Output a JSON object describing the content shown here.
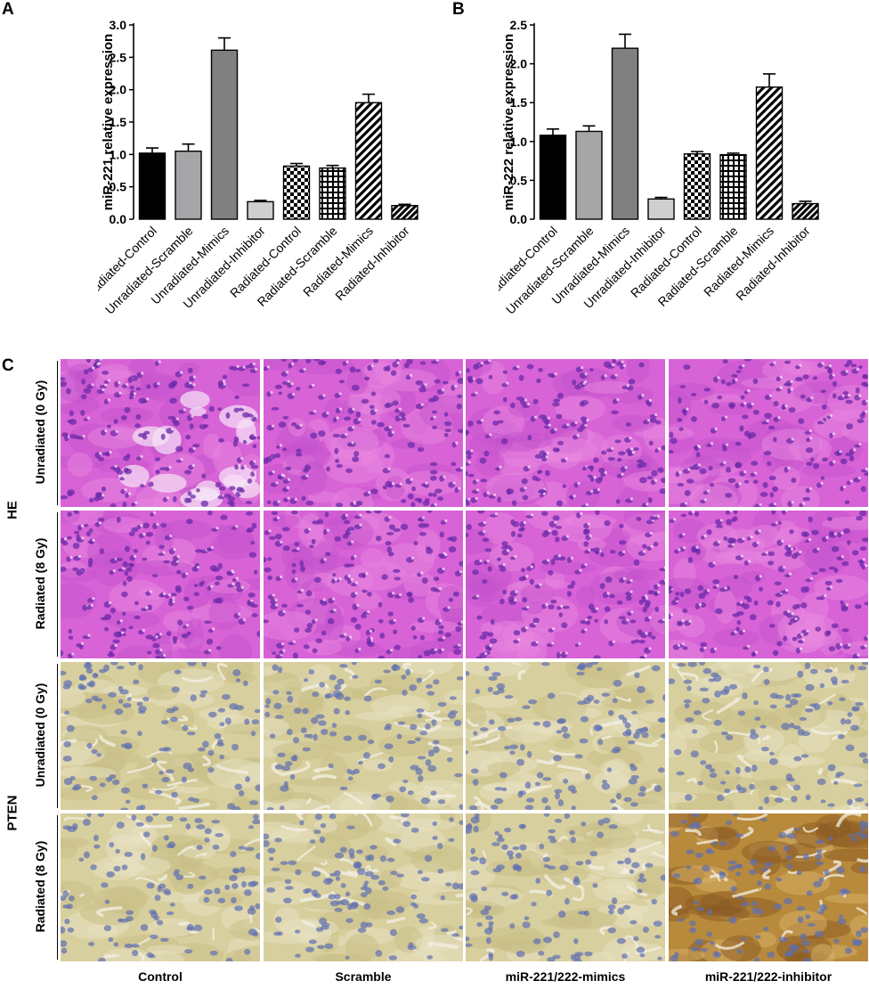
{
  "panels": {
    "a": "A",
    "b": "B",
    "c": "C"
  },
  "chart_data": [
    {
      "type": "bar",
      "ylabel": "miR-221 relative expression",
      "ylim": [
        0,
        3.0
      ],
      "yticks": [
        "0.0",
        "0.5",
        "1.0",
        "1.5",
        "2.0",
        "2.5",
        "3.0"
      ],
      "categories": [
        "Unradiated-Control",
        "Unradiated-Scramble",
        "Unradiated-Mimics",
        "Unradiated-Inhibitor",
        "Radiated-Control",
        "Radiated-Scramble",
        "Radiated-Mimics",
        "Radiated-Inhibitor"
      ],
      "values": [
        1.02,
        1.05,
        2.61,
        0.27,
        0.82,
        0.79,
        1.8,
        0.21
      ],
      "errors": [
        0.08,
        0.11,
        0.19,
        0.02,
        0.04,
        0.04,
        0.13,
        0.02
      ],
      "fills": [
        "solid-black",
        "solid-lightgray",
        "solid-gray",
        "solid-palegray",
        "checker",
        "grid",
        "diagonal",
        "diagonal-dense"
      ]
    },
    {
      "type": "bar",
      "ylabel": "miR-222 relative expression",
      "ylim": [
        0,
        2.5
      ],
      "yticks": [
        "0.0",
        "0.5",
        "1.0",
        "1.5",
        "2.0",
        "2.5"
      ],
      "categories": [
        "Unradiated-Control",
        "Unradiated-Scramble",
        "Unradiated-Mimics",
        "Unradiated-Inhibitor",
        "Radiated-Control",
        "Radiated-Scramble",
        "Radiated-Mimics",
        "Radiated-Inhibitor"
      ],
      "values": [
        1.08,
        1.13,
        2.2,
        0.26,
        0.84,
        0.83,
        1.7,
        0.2
      ],
      "errors": [
        0.08,
        0.07,
        0.18,
        0.02,
        0.03,
        0.02,
        0.17,
        0.03
      ],
      "fills": [
        "solid-black",
        "solid-lightgray",
        "solid-gray",
        "solid-palegray",
        "checker",
        "grid",
        "diagonal",
        "diagonal-dense"
      ]
    }
  ],
  "micrographs": {
    "columns": [
      "Control",
      "Scramble",
      "miR-221/222-mimics",
      "miR-221/222-inhibitor"
    ],
    "stains": [
      "HE",
      "PTEN"
    ],
    "rows": [
      "Unradiated (0 Gy)",
      "Radiated (8 Gy)"
    ],
    "colors": {
      "he_base": "#d763d6",
      "he_nucleus": "#6b2aa8",
      "pten_base": "#d8cf9e",
      "pten_nucleus": "#5f6fb0",
      "pten_strong": "#b88a3c"
    }
  }
}
